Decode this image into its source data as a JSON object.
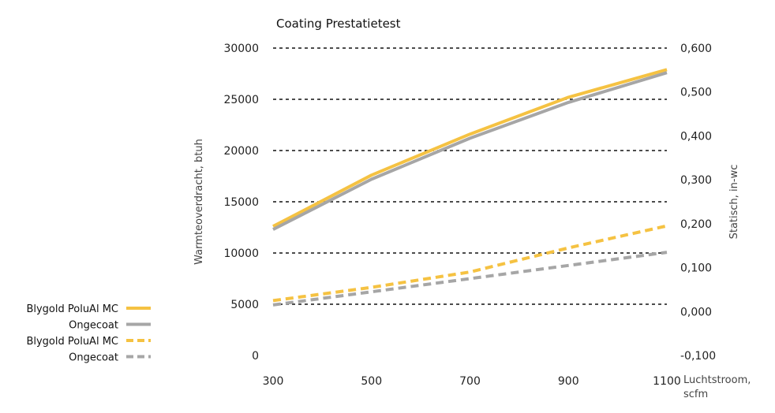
{
  "chart_data": {
    "type": "line",
    "title": "Coating Prestatietest",
    "xlabel_lines": [
      "Luchtstroom,",
      "scfm"
    ],
    "ylabel": "Warmteoverdracht, btuh",
    "y2label": "Statisch, in-wc",
    "x_ticks": [
      "300",
      "500",
      "700",
      "900",
      "1100"
    ],
    "y_ticks": [
      "0",
      "5000",
      "10000",
      "15000",
      "20000",
      "25000",
      "30000"
    ],
    "y2_ticks": [
      "-0,100",
      "0,000",
      "0,100",
      "0,200",
      "0,300",
      "0,400",
      "0,500",
      "0,600"
    ],
    "xlim": [
      300,
      1100
    ],
    "ylim": [
      0,
      30000
    ],
    "y2lim": [
      -0.1,
      0.6
    ],
    "grid": "horizontal dashed",
    "legend_position": "left",
    "series": [
      {
        "name": "Blygold PoluAl MC",
        "axis": "left",
        "style": "solid",
        "color": "#F5C242",
        "points": [
          [
            300,
            12600
          ],
          [
            500,
            17600
          ],
          [
            700,
            21600
          ],
          [
            900,
            25200
          ],
          [
            1100,
            27900
          ]
        ]
      },
      {
        "name": "Ongecoat",
        "axis": "left",
        "style": "solid",
        "color": "#A6A6A6",
        "points": [
          [
            300,
            12300
          ],
          [
            500,
            17200
          ],
          [
            700,
            21200
          ],
          [
            900,
            24700
          ],
          [
            1100,
            27600
          ]
        ]
      },
      {
        "name": "Blygold PoluAl MC",
        "axis": "right",
        "style": "dashed",
        "color": "#F5C242",
        "points": [
          [
            300,
            0.025
          ],
          [
            500,
            0.055
          ],
          [
            700,
            0.09
          ],
          [
            900,
            0.145
          ],
          [
            1100,
            0.195
          ]
        ]
      },
      {
        "name": "Ongecoat",
        "axis": "right",
        "style": "dashed",
        "color": "#A6A6A6",
        "points": [
          [
            300,
            0.015
          ],
          [
            500,
            0.045
          ],
          [
            700,
            0.075
          ],
          [
            900,
            0.105
          ],
          [
            1100,
            0.135
          ]
        ]
      }
    ]
  }
}
